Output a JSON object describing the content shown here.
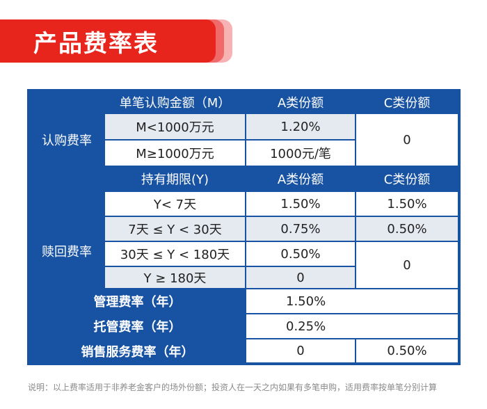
{
  "title": "产品费率表",
  "subscription": {
    "header": {
      "amount": "单笔认购金额（M）",
      "class_a": "A类份额",
      "class_c": "C类份额"
    },
    "label": "认购费率",
    "rows": [
      {
        "range": "M<1000万元",
        "a": "1.20%"
      },
      {
        "range": "M≥1000万元",
        "a": "1000元/笔"
      }
    ],
    "c_value": "0"
  },
  "redemption": {
    "header": {
      "period": "持有期限(Y)",
      "class_a": "A类份额",
      "class_c": "C类份额"
    },
    "label": "赎回费率",
    "rows": [
      {
        "range": "Y< 7天",
        "a": "1.50%"
      },
      {
        "range": "7天 ≤ Y < 30天",
        "a": "0.75%"
      },
      {
        "range": "30天 ≤ Y < 180天",
        "a": "0.50%"
      },
      {
        "range": "Y ≥ 180天",
        "a": "0"
      }
    ],
    "c_values": [
      "1.50%",
      "0.50%",
      "0"
    ]
  },
  "management": {
    "label": "管理费率（年）",
    "value": "1.50%"
  },
  "custody": {
    "label": "托管费率（年）",
    "value": "0.25%"
  },
  "sales": {
    "label": "销售服务费率（年）",
    "a": "0",
    "c": "0.50%"
  },
  "note": "说明：以上费率适用于非养老金客户的场外份额；投资人在一天之内如果有多笔申购，适用费率按单笔分别计算"
}
